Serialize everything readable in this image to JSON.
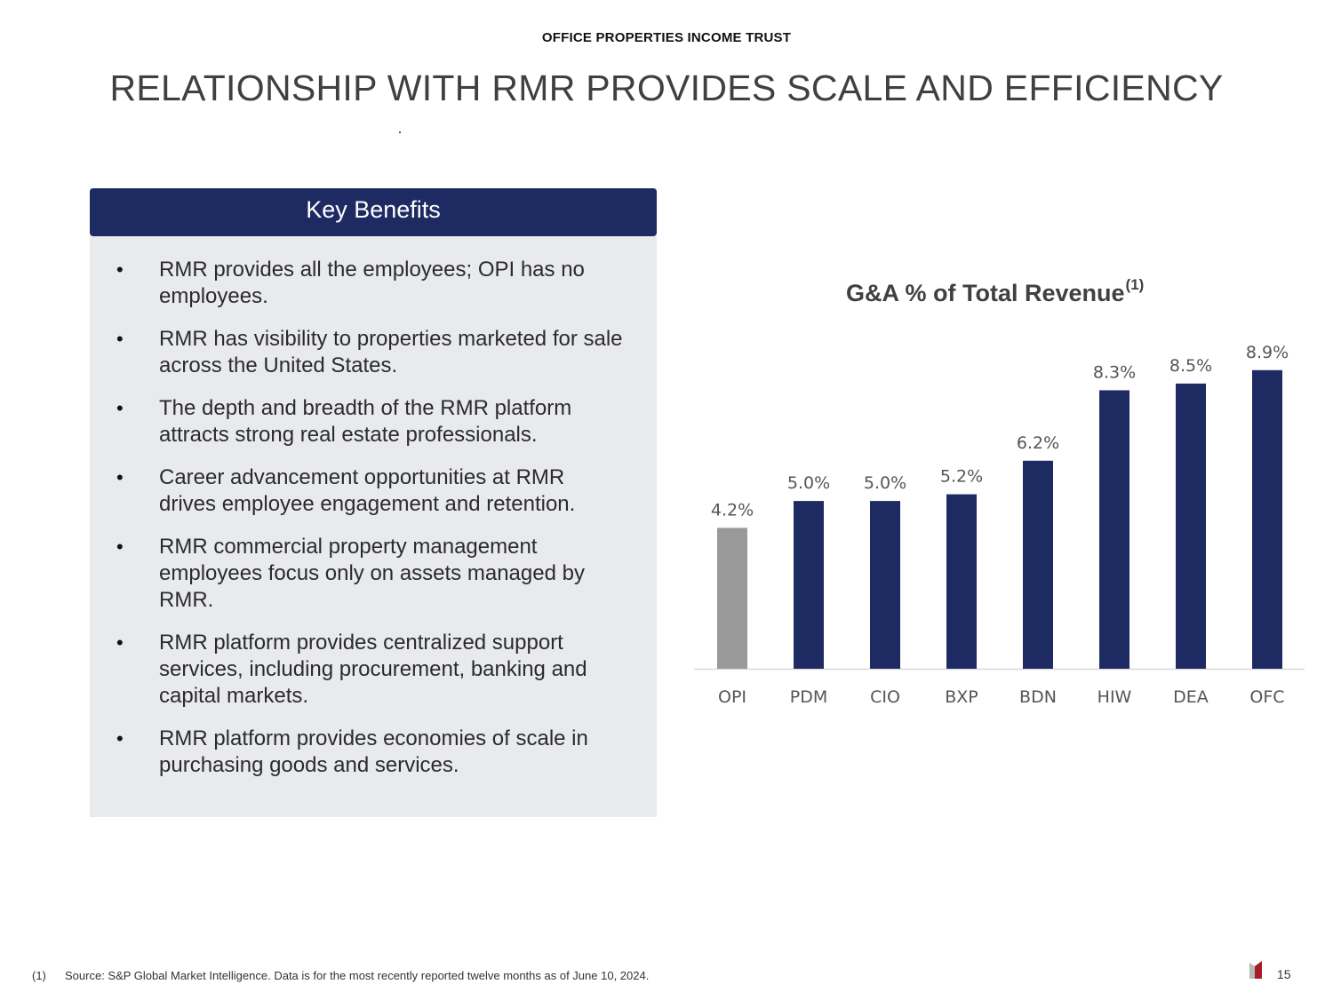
{
  "header": {
    "company": "OFFICE PROPERTIES INCOME TRUST",
    "title": "RELATIONSHIP WITH RMR PROVIDES SCALE AND EFFICIENCY"
  },
  "benefits_panel": {
    "heading": "Key Benefits",
    "bullet_symbol": "•",
    "items": [
      "RMR provides all the employees; OPI has no employees.",
      "RMR has visibility to properties marketed for sale across the United States.",
      "The depth and breadth of the RMR platform attracts strong real estate professionals.",
      "Career advancement opportunities at RMR drives employee engagement and retention.",
      "RMR commercial property management employees focus only on assets managed by RMR.",
      "RMR platform provides centralized support services, including procurement, banking and capital markets.",
      "RMR platform provides economies of scale in purchasing goods and services."
    ]
  },
  "chart_data": {
    "type": "bar",
    "title": "G&A % of Total Revenue",
    "title_footnote": "(1)",
    "categories": [
      "OPI",
      "PDM",
      "CIO",
      "BXP",
      "BDN",
      "HIW",
      "DEA",
      "OFC"
    ],
    "values": [
      4.2,
      5.0,
      5.0,
      5.2,
      6.2,
      8.3,
      8.5,
      8.9
    ],
    "data_labels": [
      "4.2%",
      "5.0%",
      "5.0%",
      "5.2%",
      "6.2%",
      "8.3%",
      "8.5%",
      "8.9%"
    ],
    "xlabel": "",
    "ylabel": "",
    "ylim": [
      0,
      9
    ],
    "grid": false,
    "legend": "none",
    "colors": {
      "highlight": "#999999",
      "peers": "#1e2b63"
    },
    "highlight_category": "OPI"
  },
  "footer": {
    "footnote_number": "(1)",
    "footnote_text": "Source: S&P Global Market Intelligence. Data is for the most recently reported twelve months as of June 10, 2024.",
    "page_number": "15"
  }
}
